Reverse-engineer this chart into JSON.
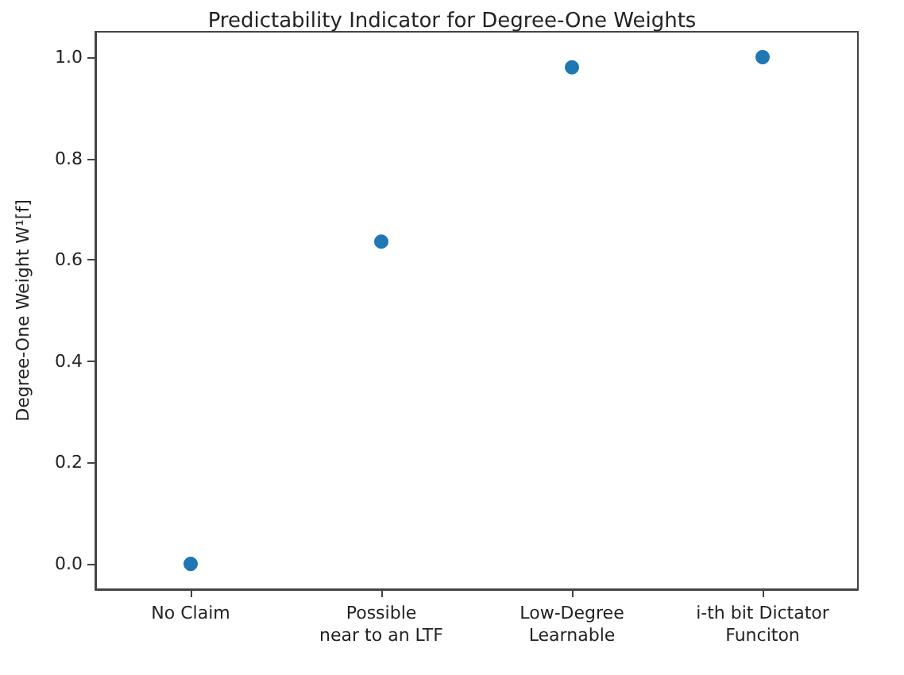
{
  "chart_data": {
    "type": "scatter",
    "title": "Predictability Indicator for Degree-One Weights",
    "ylabel": "Degree-One Weight W¹[f]",
    "categories": [
      "No Claim",
      "Possible\nnear to an LTF",
      "Low-Degree\nLearnable",
      "i-th bit Dictator\nFunciton"
    ],
    "values": [
      0,
      0.636,
      0.98,
      1.0
    ],
    "color": "#1f77b4",
    "marker": "circle",
    "ylim": [
      -0.05,
      1.05
    ],
    "yticks": [
      {
        "value": 0,
        "label": "0.0"
      },
      0.2,
      0.4,
      0.6,
      0.8,
      {
        "value": 1,
        "label": "1.0"
      }
    ]
  }
}
